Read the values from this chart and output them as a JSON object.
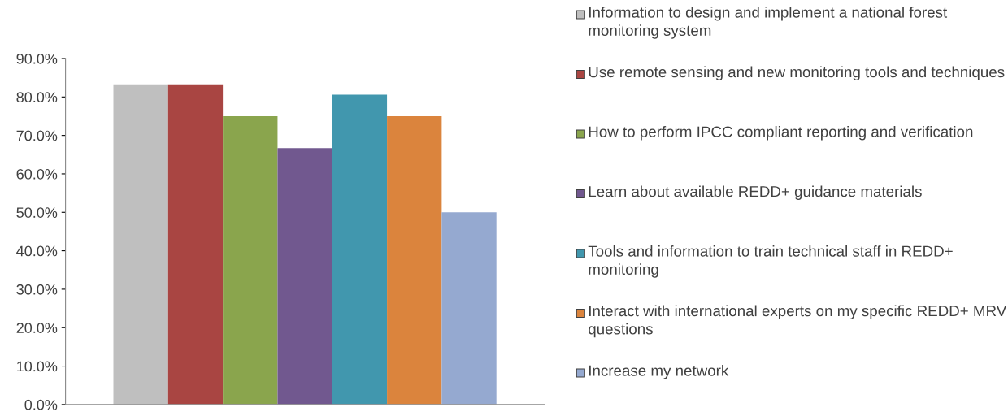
{
  "chart_data": {
    "type": "bar",
    "categories": [
      null
    ],
    "series": [
      {
        "name": "Information to design and implement a national forest monitoring system",
        "color": "#bfbfbf",
        "values": [
          83.3
        ]
      },
      {
        "name": "Use remote sensing and new monitoring tools and techniques",
        "color": "#a94542",
        "values": [
          83.3
        ]
      },
      {
        "name": "How to perform IPCC compliant reporting and verification",
        "color": "#8aa54d",
        "values": [
          75.0
        ]
      },
      {
        "name": "Learn about available REDD+ guidance materials",
        "color": "#71588f",
        "values": [
          66.7
        ]
      },
      {
        "name": "Tools and information to train technical staff in REDD+ monitoring",
        "color": "#4197ae",
        "values": [
          80.6
        ]
      },
      {
        "name": "Interact with international experts on my specific REDD+ MRV questions",
        "color": "#db843d",
        "values": [
          75.0
        ]
      },
      {
        "name": "Increase my network",
        "color": "#95a9d0",
        "values": [
          50.0
        ]
      }
    ],
    "ylim": [
      0,
      90
    ],
    "yticks": [
      {
        "value": 0,
        "label": "0.0%"
      },
      {
        "value": 10,
        "label": "10.0%"
      },
      {
        "value": 20,
        "label": "20.0%"
      },
      {
        "value": 30,
        "label": "30.0%"
      },
      {
        "value": 40,
        "label": "40.0%"
      },
      {
        "value": 50,
        "label": "50.0%"
      },
      {
        "value": 60,
        "label": "60.0%"
      },
      {
        "value": 70,
        "label": "70.0%"
      },
      {
        "value": 80,
        "label": "80.0%"
      },
      {
        "value": 90,
        "label": "90.0%"
      }
    ],
    "grid": false,
    "legend": "right"
  }
}
